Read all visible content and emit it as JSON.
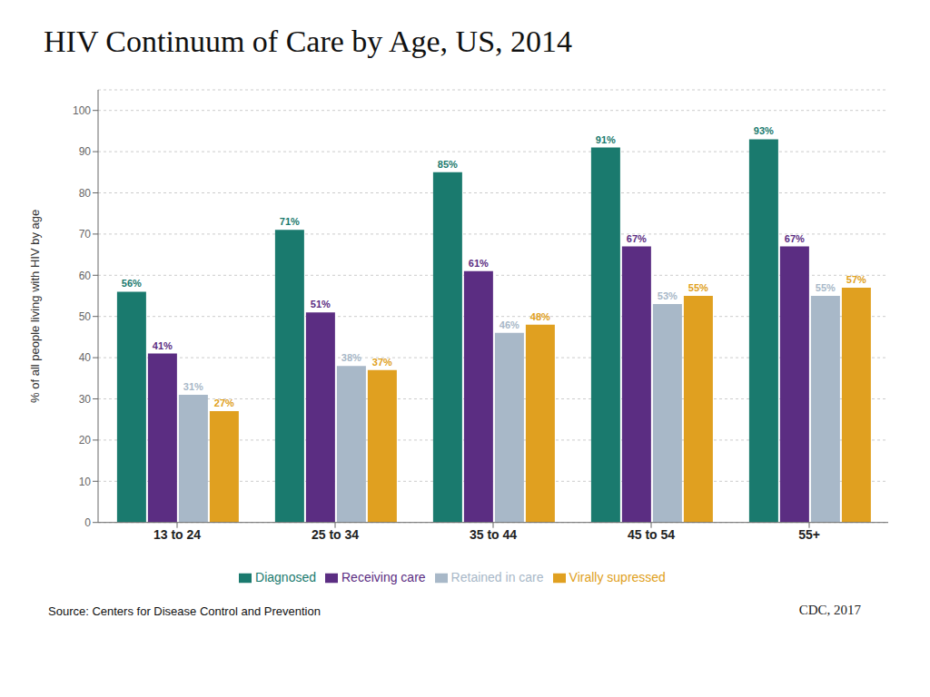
{
  "chart_data": {
    "type": "bar",
    "title": "HIV Continuum of Care by Age, US, 2014",
    "y_label": "% of all people living with HIV by age",
    "categories": [
      "13 to 24",
      "25 to 34",
      "35 to 44",
      "45 to 54",
      "55+"
    ],
    "series": [
      {
        "name": "Diagnosed",
        "color": "#1a7a6e",
        "values": [
          56,
          71,
          85,
          91,
          93
        ],
        "value_labels": [
          "56%",
          "71%",
          "85%",
          "91%",
          "93%"
        ]
      },
      {
        "name": "Receiving care",
        "color": "#5b2d82",
        "values": [
          41,
          51,
          61,
          67,
          67
        ],
        "value_labels": [
          "41%",
          "51%",
          "61%",
          "67%",
          "67%"
        ]
      },
      {
        "name": "Retained in care",
        "color": "#a8b8c8",
        "values": [
          31,
          38,
          46,
          53,
          55
        ],
        "value_labels": [
          "31%",
          "38%",
          "46%",
          "53%",
          "55%"
        ]
      },
      {
        "name": "Virally supressed",
        "color": "#e0a020",
        "values": [
          27,
          37,
          48,
          55,
          57
        ],
        "value_labels": [
          "27%",
          "37%",
          "48%",
          "55%",
          "57%"
        ]
      }
    ],
    "ylim": [
      0,
      105
    ],
    "yticks": [
      0,
      10,
      20,
      30,
      40,
      50,
      60,
      70,
      80,
      90,
      100
    ],
    "grid": true,
    "data_labels": true,
    "legend": "bottom",
    "annotations": [
      "Source: Centers for Disease Control and Prevention",
      "CDC, 2017"
    ]
  }
}
